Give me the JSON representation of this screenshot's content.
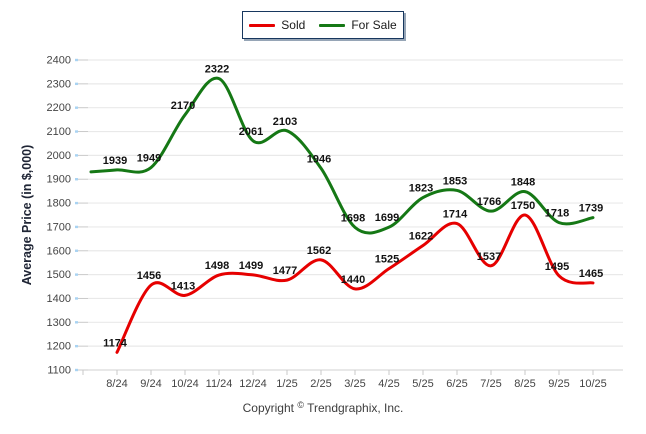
{
  "legend": {
    "items": [
      {
        "label": "Sold",
        "color": "#e60000"
      },
      {
        "label": "For Sale",
        "color": "#157815"
      }
    ]
  },
  "y_axis": {
    "title": "Average Price (in $,000)",
    "ticks": [
      1100,
      1200,
      1300,
      1400,
      1500,
      1600,
      1700,
      1800,
      1900,
      2000,
      2100,
      2200,
      2300,
      2400
    ]
  },
  "x_axis": {
    "categories": [
      "8/24",
      "9/24",
      "10/24",
      "11/24",
      "12/24",
      "1/25",
      "2/25",
      "3/25",
      "4/25",
      "5/25",
      "6/25",
      "7/25",
      "8/25",
      "9/25",
      "10/25"
    ]
  },
  "footer": {
    "pre": "Copyright",
    "symbol": "©",
    "post": "Trendgraphix, Inc."
  },
  "colors": {
    "grid": "#e9e9e9",
    "axis_line": "#d9d9d9",
    "tick": "#c9c9c9",
    "tick_accent": "#a9d3f2"
  },
  "chart_data": {
    "type": "line",
    "categories": [
      "8/24",
      "9/24",
      "10/24",
      "11/24",
      "12/24",
      "1/25",
      "2/25",
      "3/25",
      "4/25",
      "5/25",
      "6/25",
      "7/25",
      "8/25",
      "9/25",
      "10/25"
    ],
    "series": [
      {
        "name": "Sold",
        "color": "#e60000",
        "values": [
          1174,
          1456,
          1413,
          1498,
          1499,
          1477,
          1562,
          1440,
          1525,
          1622,
          1714,
          1537,
          1750,
          1495,
          1465
        ]
      },
      {
        "name": "For Sale",
        "color": "#157815",
        "values": [
          1939,
          1949,
          2170,
          2322,
          2061,
          2103,
          1946,
          1698,
          1699,
          1823,
          1853,
          1766,
          1848,
          1718,
          1739
        ]
      }
    ],
    "title": "",
    "xlabel": "",
    "ylabel": "Average Price (in $,000)",
    "ylim": [
      1100,
      2400
    ],
    "ytick_step": 100,
    "grid": "horizontal",
    "legend_position": "top-center",
    "smooth": true,
    "data_labels": true
  }
}
